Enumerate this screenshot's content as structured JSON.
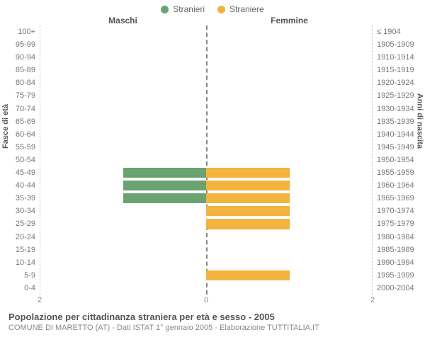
{
  "legend": {
    "items": [
      {
        "label": "Stranieri",
        "color": "#6aa36f"
      },
      {
        "label": "Straniere",
        "color": "#f4b23f"
      }
    ]
  },
  "headers": {
    "left": "Maschi",
    "right": "Femmine"
  },
  "axis_labels": {
    "left": "Fasce di età",
    "right": "Anni di nascita"
  },
  "age_bands": [
    {
      "age": "100+",
      "years": "≤ 1904",
      "m": 0,
      "f": 0
    },
    {
      "age": "95-99",
      "years": "1905-1909",
      "m": 0,
      "f": 0
    },
    {
      "age": "90-94",
      "years": "1910-1914",
      "m": 0,
      "f": 0
    },
    {
      "age": "85-89",
      "years": "1915-1919",
      "m": 0,
      "f": 0
    },
    {
      "age": "80-84",
      "years": "1920-1924",
      "m": 0,
      "f": 0
    },
    {
      "age": "75-79",
      "years": "1925-1929",
      "m": 0,
      "f": 0
    },
    {
      "age": "70-74",
      "years": "1930-1934",
      "m": 0,
      "f": 0
    },
    {
      "age": "65-69",
      "years": "1935-1939",
      "m": 0,
      "f": 0
    },
    {
      "age": "60-64",
      "years": "1940-1944",
      "m": 0,
      "f": 0
    },
    {
      "age": "55-59",
      "years": "1945-1949",
      "m": 0,
      "f": 0
    },
    {
      "age": "50-54",
      "years": "1950-1954",
      "m": 0,
      "f": 0
    },
    {
      "age": "45-49",
      "years": "1955-1959",
      "m": 1,
      "f": 1
    },
    {
      "age": "40-44",
      "years": "1960-1964",
      "m": 1,
      "f": 1
    },
    {
      "age": "35-39",
      "years": "1965-1969",
      "m": 1,
      "f": 1
    },
    {
      "age": "30-34",
      "years": "1970-1974",
      "m": 0,
      "f": 1
    },
    {
      "age": "25-29",
      "years": "1975-1979",
      "m": 0,
      "f": 1
    },
    {
      "age": "20-24",
      "years": "1980-1984",
      "m": 0,
      "f": 0
    },
    {
      "age": "15-19",
      "years": "1985-1989",
      "m": 0,
      "f": 0
    },
    {
      "age": "10-14",
      "years": "1990-1994",
      "m": 0,
      "f": 0
    },
    {
      "age": "5-9",
      "years": "1995-1999",
      "m": 0,
      "f": 1
    },
    {
      "age": "0-4",
      "years": "2000-2004",
      "m": 0,
      "f": 0
    }
  ],
  "x_axis": {
    "max": 2,
    "ticks": [
      2,
      0,
      2
    ]
  },
  "colors": {
    "male": "#6aa36f",
    "female": "#f4b23f",
    "midline": "#888888",
    "grid": "#cccccc",
    "background": "#ffffff"
  },
  "footer": {
    "title": "Popolazione per cittadinanza straniera per età e sesso - 2005",
    "subtitle": "COMUNE DI MARETTO (AT) - Dati ISTAT 1° gennaio 2005 - Elaborazione TUTTITALIA.IT"
  }
}
